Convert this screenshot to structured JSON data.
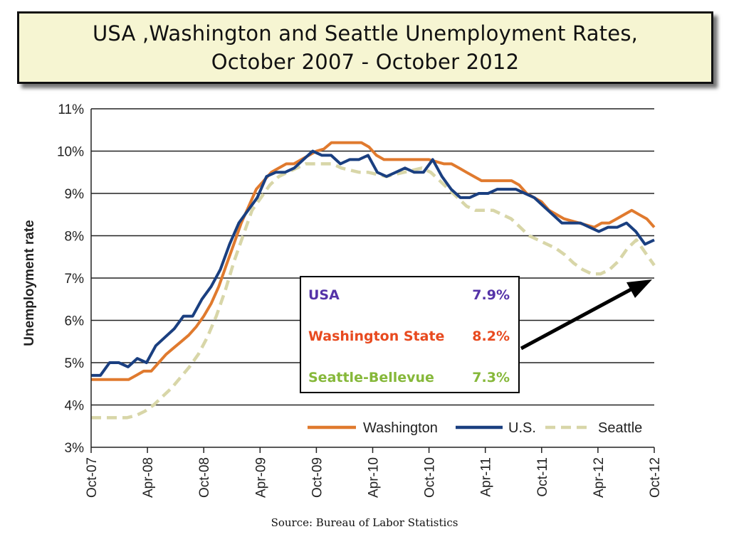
{
  "title": {
    "line1": "USA ,Washington and Seattle Unemployment Rates,",
    "line2": "October 2007 - October 2012"
  },
  "source": "Source: Bureau of Labor Statistics",
  "colors": {
    "washington": "#e07a2e",
    "us": "#1a3f80",
    "seattle": "#d8d6a8",
    "usa_label": "#5533a8",
    "wa_label": "#e84a1f",
    "seattle_label": "#86b83a",
    "title_bg": "#f6f5d2"
  },
  "callout": {
    "rows": [
      {
        "label": "USA",
        "value": "7.9%",
        "color": "#5533a8"
      },
      {
        "label": "Washington State",
        "value": "8.2%",
        "color": "#e84a1f"
      },
      {
        "label": "Seattle-Bellevue",
        "value": "7.3%",
        "color": "#86b83a"
      }
    ]
  },
  "chart_data": {
    "type": "line",
    "title": "",
    "xlabel": "",
    "ylabel": "Unemployment rate",
    "ylim": [
      3,
      11
    ],
    "ytick_labels": [
      "3%",
      "4%",
      "5%",
      "6%",
      "7%",
      "8%",
      "9%",
      "10%",
      "11%"
    ],
    "xtick_labels": [
      "Oct-07",
      "Apr-08",
      "Oct-08",
      "Apr-09",
      "Oct-09",
      "Apr-10",
      "Oct-10",
      "Apr-11",
      "Oct-11",
      "Apr-12",
      "Oct-12"
    ],
    "x_range": [
      "Oct-07",
      "Oct-12"
    ],
    "grid": "horizontal",
    "legend_position": "bottom-right",
    "series": [
      {
        "name": "Washington",
        "style": "solid",
        "color": "#e07a2e",
        "values": [
          4.6,
          4.6,
          4.6,
          4.6,
          4.6,
          4.6,
          4.7,
          4.8,
          4.8,
          5.0,
          5.2,
          5.35,
          5.5,
          5.65,
          5.85,
          6.1,
          6.4,
          6.8,
          7.3,
          7.8,
          8.3,
          8.7,
          9.1,
          9.3,
          9.5,
          9.6,
          9.7,
          9.7,
          9.8,
          9.9,
          10.0,
          10.05,
          10.2,
          10.2,
          10.2,
          10.2,
          10.2,
          10.1,
          9.9,
          9.8,
          9.8,
          9.8,
          9.8,
          9.8,
          9.8,
          9.8,
          9.75,
          9.7,
          9.7,
          9.6,
          9.5,
          9.4,
          9.3,
          9.3,
          9.3,
          9.3,
          9.3,
          9.2,
          9.0,
          8.9,
          8.8,
          8.6,
          8.5,
          8.4,
          8.35,
          8.3,
          8.25,
          8.2,
          8.3,
          8.3,
          8.4,
          8.5,
          8.6,
          8.5,
          8.4,
          8.2
        ]
      },
      {
        "name": "U.S.",
        "style": "solid",
        "color": "#1a3f80",
        "values": [
          4.7,
          4.7,
          5.0,
          5.0,
          4.9,
          5.1,
          5.0,
          5.4,
          5.6,
          5.8,
          6.1,
          6.1,
          6.5,
          6.8,
          7.2,
          7.8,
          8.3,
          8.6,
          8.9,
          9.4,
          9.5,
          9.5,
          9.6,
          9.8,
          10.0,
          9.9,
          9.9,
          9.7,
          9.8,
          9.8,
          9.9,
          9.5,
          9.4,
          9.5,
          9.6,
          9.5,
          9.5,
          9.8,
          9.4,
          9.1,
          8.9,
          8.9,
          9.0,
          9.0,
          9.1,
          9.1,
          9.1,
          9.0,
          8.9,
          8.7,
          8.5,
          8.3,
          8.3,
          8.3,
          8.2,
          8.1,
          8.2,
          8.2,
          8.3,
          8.1,
          7.8,
          7.9
        ]
      },
      {
        "name": "Seattle",
        "style": "dashed",
        "color": "#d8d6a8",
        "values": [
          3.7,
          3.7,
          3.7,
          3.7,
          3.7,
          3.75,
          3.85,
          4.0,
          4.2,
          4.4,
          4.65,
          4.9,
          5.2,
          5.6,
          6.1,
          6.7,
          7.4,
          8.0,
          8.6,
          8.9,
          9.2,
          9.4,
          9.5,
          9.6,
          9.7,
          9.7,
          9.7,
          9.7,
          9.6,
          9.55,
          9.5,
          9.5,
          9.45,
          9.4,
          9.45,
          9.5,
          9.55,
          9.6,
          9.5,
          9.3,
          9.1,
          8.9,
          8.7,
          8.6,
          8.6,
          8.6,
          8.5,
          8.4,
          8.2,
          8.0,
          7.9,
          7.8,
          7.7,
          7.55,
          7.35,
          7.2,
          7.1,
          7.1,
          7.2,
          7.4,
          7.7,
          7.9,
          7.6,
          7.3
        ]
      }
    ]
  }
}
